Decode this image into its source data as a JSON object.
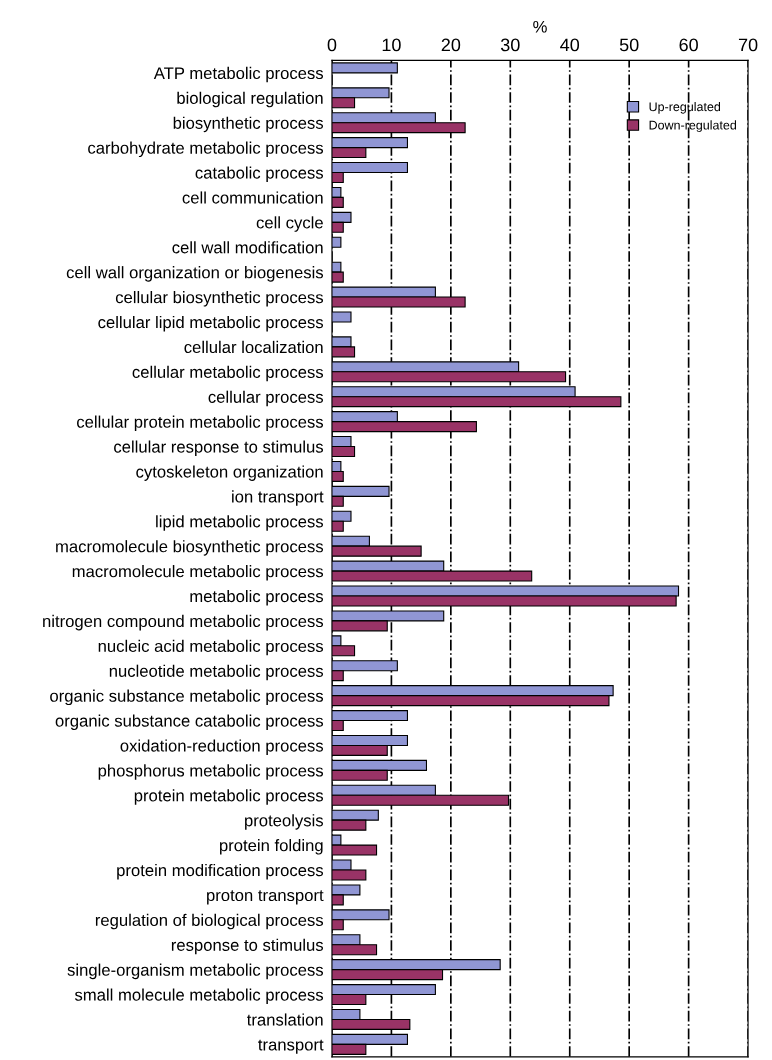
{
  "chart_data": {
    "type": "bar",
    "orientation": "horizontal",
    "xlabel": "%",
    "categories": [
      "ATP metabolic process",
      "biological regulation",
      "biosynthetic process",
      "carbohydrate metabolic process",
      "catabolic process",
      "cell communication",
      "cell cycle",
      "cell wall modification",
      "cell wall organization or biogenesis",
      "cellular biosynthetic process",
      "cellular lipid metabolic process",
      "cellular localization",
      "cellular metabolic process",
      "cellular process",
      "cellular protein metabolic process",
      "cellular response to stimulus",
      "cytoskeleton organization",
      "ion transport",
      "lipid metabolic process",
      "macromolecule biosynthetic process",
      "macromolecule metabolic process",
      "metabolic process",
      "nitrogen compound metabolic process",
      "nucleic acid metabolic process",
      "nucleotide metabolic process",
      "organic substance metabolic process",
      "organic substance catabolic process",
      "oxidation-reduction process",
      "phosphorus metabolic process",
      "protein metabolic process",
      "proteolysis",
      "protein folding",
      "protein modification process",
      "proton transport",
      "regulation of biological process",
      "response to stimulus",
      "single-organism metabolic process",
      "small molecule metabolic process",
      "translation",
      "transport"
    ],
    "series": [
      {
        "name": "Up-regulated",
        "color": "#9096d4",
        "values": [
          11.0,
          9.6,
          17.4,
          12.7,
          12.7,
          1.5,
          3.2,
          1.5,
          1.5,
          17.4,
          3.2,
          3.2,
          31.4,
          40.9,
          11.0,
          3.2,
          1.5,
          9.6,
          3.2,
          6.3,
          18.8,
          58.3,
          18.8,
          1.5,
          11.0,
          47.3,
          12.7,
          12.7,
          15.9,
          17.4,
          7.8,
          1.5,
          3.2,
          4.7,
          9.6,
          4.7,
          28.3,
          17.4,
          4.7,
          12.7
        ]
      },
      {
        "name": "Down-regulated",
        "color": "#993366",
        "values": [
          null,
          3.8,
          22.4,
          5.7,
          1.9,
          1.9,
          1.9,
          null,
          1.9,
          22.4,
          null,
          3.8,
          39.3,
          48.6,
          24.3,
          3.8,
          1.9,
          1.9,
          1.9,
          15.0,
          33.6,
          57.9,
          9.3,
          3.8,
          1.9,
          46.6,
          1.9,
          9.3,
          9.3,
          29.7,
          5.7,
          7.5,
          5.7,
          1.9,
          1.9,
          7.5,
          18.6,
          5.7,
          13.1,
          5.7
        ]
      }
    ],
    "xlim": [
      0,
      70
    ],
    "xticks": [
      0,
      10,
      20,
      30,
      40,
      50,
      60,
      70
    ],
    "grid": "x",
    "legend": "top right"
  }
}
